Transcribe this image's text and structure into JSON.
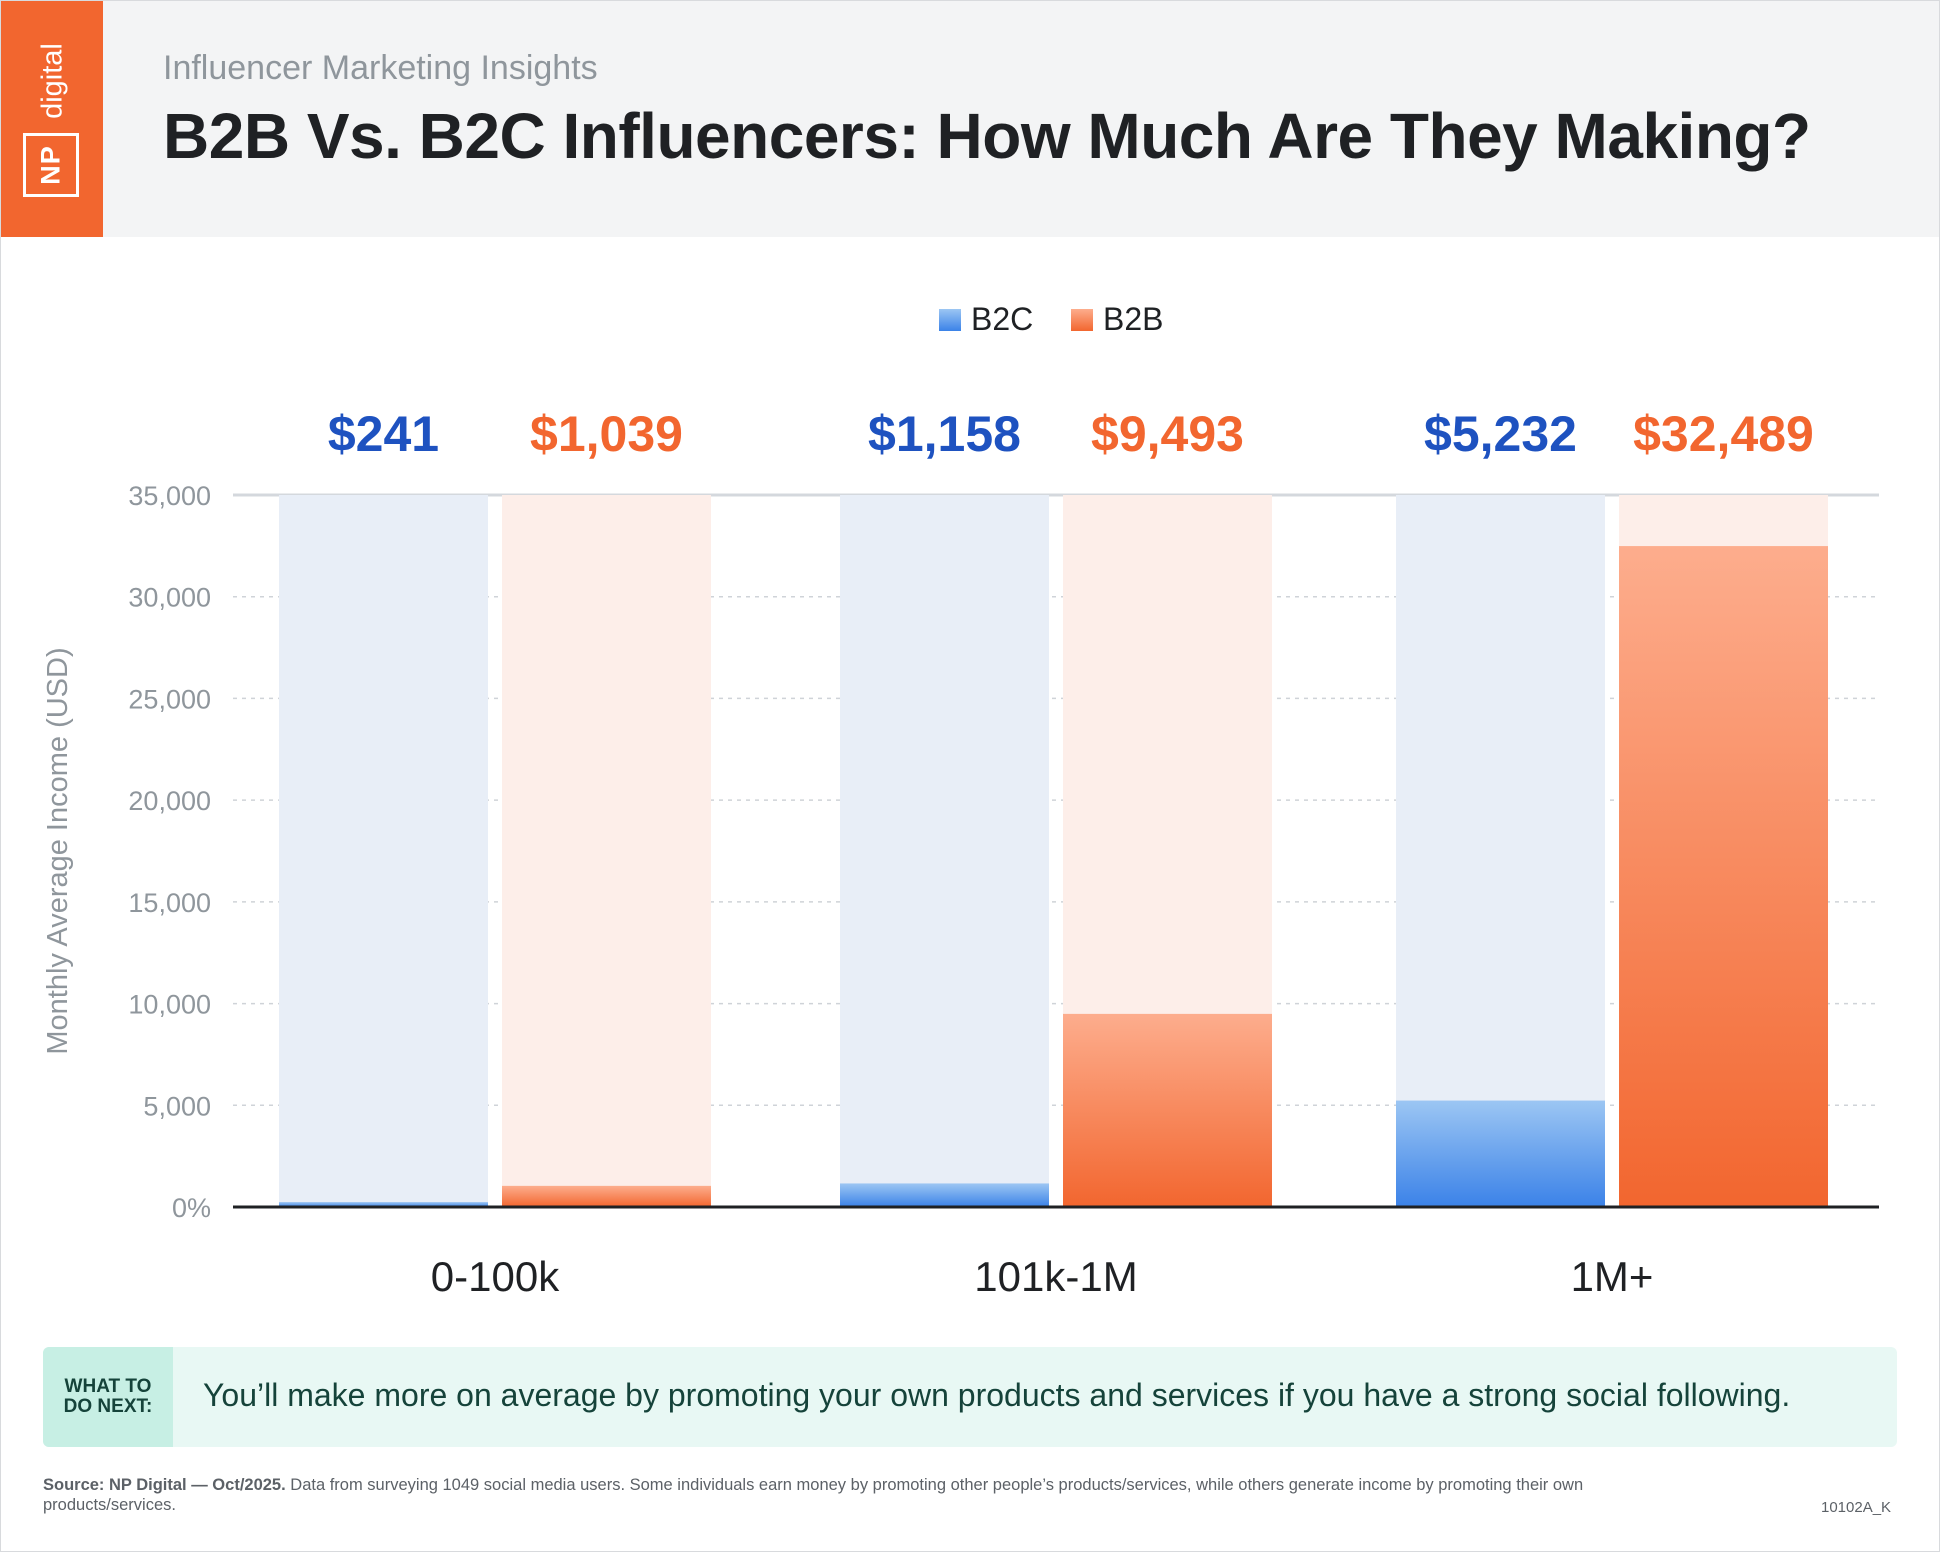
{
  "header": {
    "brand_np": "NP",
    "brand_digital": "digital",
    "subtitle": "Influencer Marketing Insights",
    "title": "B2B Vs. B2C Influencers: How Much Are They Making?"
  },
  "colors": {
    "b2c": "#3b82e8",
    "b2c_light": "#9cc6f3",
    "b2c_track": "#e8eef7",
    "b2c_label": "#1e52c0",
    "b2b": "#f2662f",
    "b2b_light": "#fdad8d",
    "b2b_track": "#fdeee9",
    "b2b_label": "#f2662f",
    "accent": "#f2662f"
  },
  "chart_data": {
    "type": "bar",
    "categories": [
      "0-100k",
      "101k-1M",
      "1M+"
    ],
    "series": [
      {
        "name": "B2C",
        "values": [
          241,
          1158,
          5232
        ],
        "labels": [
          "$241",
          "$1,158",
          "$5,232"
        ]
      },
      {
        "name": "B2B",
        "values": [
          1039,
          9493,
          32489
        ],
        "labels": [
          "$1,039",
          "$9,493",
          "$32,489"
        ]
      }
    ],
    "ylabel": "Monthly Average Income (USD)",
    "xlabel": "",
    "ylim": [
      0,
      35000
    ],
    "yticks": [
      0,
      5000,
      10000,
      15000,
      20000,
      25000,
      30000,
      35000
    ],
    "ytick_labels": [
      "0%",
      "5,000",
      "10,000",
      "15,000",
      "20,000",
      "25,000",
      "30,000",
      "35,000"
    ],
    "legend_position": "top-center",
    "grid": true
  },
  "what_to_do": {
    "label_line1": "WHAT TO",
    "label_line2": "DO NEXT:",
    "text": "You’ll make more on average by promoting your own products and services if you have a strong social following."
  },
  "footer": {
    "source_bold": "Source: NP Digital — Oct/2025.",
    "source_text": " Data from surveying 1049 social media users. Some individuals earn money by promoting other people’s products/services, while others generate income by promoting their own products/services.",
    "code": "10102A_K"
  }
}
